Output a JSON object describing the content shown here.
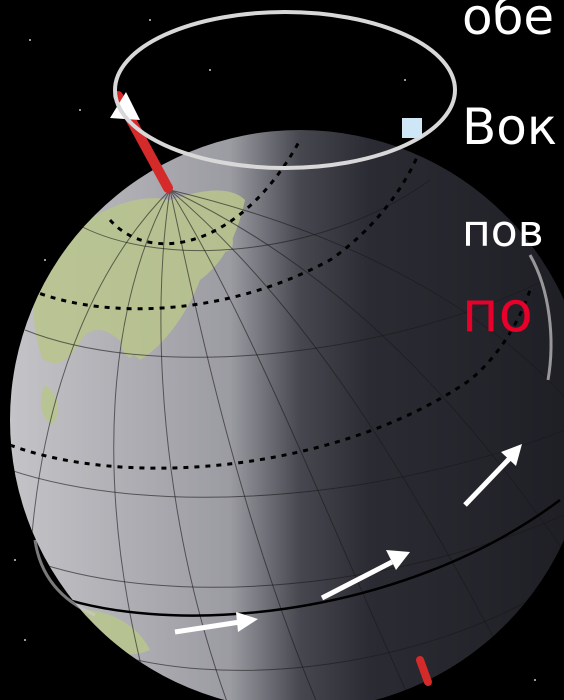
{
  "text": {
    "line1": "обе",
    "line2": "Вок",
    "line3": "пов",
    "line4": "по"
  },
  "colors": {
    "background": "#000000",
    "bullet": "#cfe6f6",
    "text": "#ffffff",
    "highlight": "#e8002a",
    "axis": "#d42a2a",
    "land": "#b9c58c"
  }
}
